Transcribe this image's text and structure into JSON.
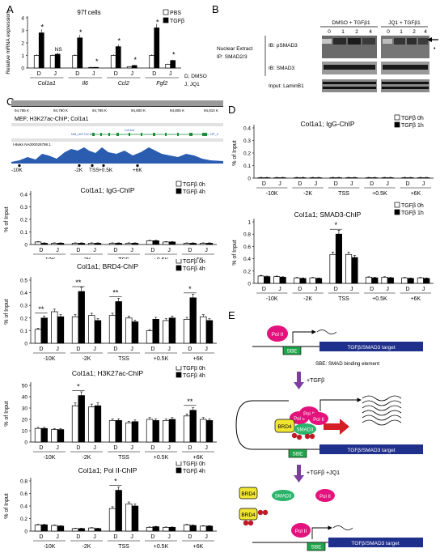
{
  "panels": {
    "A": "A",
    "B": "B",
    "C": "C",
    "D": "D",
    "E": "E"
  },
  "colors": {
    "open": "#ffffff",
    "filled": "#000000",
    "polII": "#e4127c",
    "sbe": "#1fa64a",
    "smad3": "#2bb36b",
    "brd4": "#f0e632",
    "target": "#1f2f8c",
    "arrow": "#7b3fa0",
    "redArrow": "#d41f26",
    "chipTrack": "#2a5db0",
    "acetyl": "#c01a28"
  },
  "panelA": {
    "title": "97f cells",
    "ylabel": "Relative mRNA expression",
    "legend": [
      "PBS",
      "TGFβ"
    ],
    "genes": [
      "Col1a1",
      "Il6",
      "Ccl2",
      "Fgf2"
    ],
    "xticks": [
      "D",
      "J"
    ],
    "note_d": "D, DMSO",
    "note_j": "J, JQ1",
    "ns": "NS",
    "star": "*"
  },
  "panelB": {
    "group1": "DMSO + TGFβ1",
    "group2": "JQ1 + TGFβ1",
    "lanes": [
      "0",
      "1",
      "2",
      "4"
    ],
    "left1": "Nuclear Extract",
    "left2": "IP: SMAD2/3",
    "ib1": "IB: pSMAD3",
    "ib2": "IB: SMAD3",
    "input": "Input: LaminB1",
    "dot": "•"
  },
  "panelC": {
    "ruler": [
      "94,785 K",
      "94,790 K",
      "94,795 K",
      "94,800 K",
      "94,805 K",
      "94,810 K"
    ],
    "track_title": "MEF; H3K27ac-ChIP; Col1a1",
    "gene_label": "Col1a1",
    "refseq": "NM_007742.3",
    "refseq2": "NP_0",
    "ylab_track": "t-8wks NA000026798.1",
    "sites": [
      "-10K",
      "-2K",
      "TSS",
      "+0.5K",
      "+6K"
    ]
  },
  "panelD": {
    "ylabel": "% of Input"
  },
  "panelE": {
    "polII": "Pol II",
    "sbe": "SBE",
    "target": "TGFβ/SMAD3 target",
    "sbe_def": "SBE: SMAD binding element",
    "step1": "+TGFβ",
    "step2": "+TGFβ +JQ1",
    "brd4": "BRD4",
    "smad3": "SMAD3"
  },
  "chart_data": [
    {
      "id": "A",
      "type": "bar",
      "title": "97f cells",
      "ylabel": "Relative mRNA expression",
      "ylim": [
        0,
        4
      ],
      "yticks": [
        0,
        1,
        2,
        3,
        4
      ],
      "categories": [
        "Col1a1 D",
        "Col1a1 J",
        "Il6 D",
        "Il6 J",
        "Ccl2 D",
        "Ccl2 J",
        "Fgf2 D",
        "Fgf2 J"
      ],
      "series": [
        {
          "name": "PBS",
          "values": [
            1.0,
            1.0,
            1.0,
            0.05,
            1.0,
            0.1,
            1.0,
            0.3
          ]
        },
        {
          "name": "TGFβ",
          "values": [
            2.8,
            1.1,
            2.4,
            0.05,
            1.7,
            0.2,
            3.2,
            0.6
          ]
        }
      ],
      "annotations": [
        {
          "category": "Col1a1 D",
          "text": "*"
        },
        {
          "category": "Col1a1 J",
          "text": "NS"
        },
        {
          "category": "Il6 D",
          "text": "*"
        },
        {
          "category": "Il6 J",
          "text": "*"
        },
        {
          "category": "Ccl2 D",
          "text": "*"
        },
        {
          "category": "Ccl2 J",
          "text": "*"
        },
        {
          "category": "Fgf2 D",
          "text": "*"
        },
        {
          "category": "Fgf2 J",
          "text": "*"
        }
      ]
    },
    {
      "id": "C1",
      "type": "bar",
      "title": "Col1a1; IgG-ChIP",
      "ylabel": "% of Input",
      "ylim": [
        0,
        0.4
      ],
      "yticks": [
        0,
        0.1,
        0.2,
        0.3,
        0.4
      ],
      "sites": [
        "-10K",
        "-2K",
        "TSS",
        "+0.5K",
        "+6K"
      ],
      "xticks": [
        "D",
        "J"
      ],
      "series": [
        {
          "name": "TGFβ 0h",
          "values": [
            0.02,
            0.01,
            0.01,
            0.01,
            0.01,
            0.01,
            0.03,
            0.02,
            0.01,
            0.01
          ]
        },
        {
          "name": "TGFβ 4h",
          "values": [
            0.01,
            0.01,
            0.01,
            0.01,
            0.01,
            0.01,
            0.03,
            0.02,
            0.01,
            0.01
          ]
        }
      ],
      "annotations": []
    },
    {
      "id": "C2",
      "type": "bar",
      "title": "Col1a1; BRD4-ChIP",
      "ylabel": "% of Input",
      "ylim": [
        0,
        0.5
      ],
      "yticks": [
        0,
        0.1,
        0.2,
        0.3,
        0.4,
        0.5
      ],
      "sites": [
        "-10K",
        "-2K",
        "TSS",
        "+0.5K",
        "+6K"
      ],
      "xticks": [
        "D",
        "J"
      ],
      "series": [
        {
          "name": "TGFβ 0h",
          "values": [
            0.11,
            0.25,
            0.21,
            0.22,
            0.22,
            0.2,
            0.1,
            0.18,
            0.19,
            0.21
          ]
        },
        {
          "name": "TGFβ 4h",
          "values": [
            0.2,
            0.21,
            0.41,
            0.18,
            0.33,
            0.17,
            0.19,
            0.2,
            0.36,
            0.18
          ]
        }
      ],
      "annotations": [
        {
          "site": "-10K",
          "text": "**"
        },
        {
          "site": "-2K",
          "text": "**"
        },
        {
          "site": "TSS",
          "text": "**"
        },
        {
          "site": "+6K",
          "text": "*"
        }
      ]
    },
    {
      "id": "C3",
      "type": "bar",
      "title": "Col1a1; H3K27ac-ChIP",
      "ylabel": "% of Input",
      "ylim": [
        0,
        50
      ],
      "yticks": [
        0,
        10,
        20,
        30,
        40,
        50
      ],
      "sites": [
        "-10K",
        "-2K",
        "TSS",
        "+0.5K",
        "+6K"
      ],
      "xticks": [
        "D",
        "J"
      ],
      "series": [
        {
          "name": "TGFβ 0h",
          "values": [
            12,
            11,
            32,
            31,
            19,
            17,
            20,
            19,
            23,
            20
          ]
        },
        {
          "name": "TGFβ 4h",
          "values": [
            12,
            11,
            41,
            32,
            19,
            18,
            19,
            20,
            28,
            19
          ]
        }
      ],
      "annotations": [
        {
          "site": "-2K",
          "text": "*"
        },
        {
          "site": "+6K",
          "text": "**"
        }
      ]
    },
    {
      "id": "C4",
      "type": "bar",
      "title": "Col1a1; Pol II-ChIP",
      "ylabel": "% of Input",
      "ylim": [
        0,
        0.8
      ],
      "yticks": [
        0,
        0.2,
        0.4,
        0.6,
        0.8
      ],
      "sites": [
        "-10K",
        "-2K",
        "TSS",
        "+0.5K",
        "+6K"
      ],
      "xticks": [
        "D",
        "J"
      ],
      "series": [
        {
          "name": "TGFβ 0h",
          "values": [
            0.1,
            0.09,
            0.04,
            0.05,
            0.36,
            0.43,
            0.06,
            0.06,
            0.1,
            0.08
          ]
        },
        {
          "name": "TGFβ 4h",
          "values": [
            0.1,
            0.08,
            0.04,
            0.04,
            0.65,
            0.4,
            0.07,
            0.06,
            0.09,
            0.08
          ]
        }
      ],
      "annotations": [
        {
          "site": "TSS",
          "text": "*"
        }
      ]
    },
    {
      "id": "D1",
      "type": "bar",
      "title": "Col1a1; IgG-ChIP",
      "ylabel": "% of Input",
      "ylim": [
        0,
        0.4
      ],
      "yticks": [
        0,
        0.1,
        0.2,
        0.3,
        0.4
      ],
      "sites": [
        "-10K",
        "-2K",
        "TSS",
        "+0.5K",
        "+6K"
      ],
      "xticks": [
        "D",
        "J"
      ],
      "series": [
        {
          "name": "TGFβ 0h",
          "values": [
            0.003,
            0.003,
            0.003,
            0.003,
            0.003,
            0.003,
            0.003,
            0.003,
            0.003,
            0.003
          ]
        },
        {
          "name": "TGFβ 1h",
          "values": [
            0.003,
            0.003,
            0.003,
            0.003,
            0.003,
            0.003,
            0.003,
            0.003,
            0.003,
            0.003
          ]
        }
      ],
      "annotations": []
    },
    {
      "id": "D2",
      "type": "bar",
      "title": "Col1a1; SMAD3-ChIP",
      "ylabel": "% of Input",
      "ylim": [
        0,
        1.0
      ],
      "yticks": [
        0,
        0.2,
        0.4,
        0.6,
        0.8,
        1.0
      ],
      "sites": [
        "-10K",
        "-2K",
        "TSS",
        "+0.5K",
        "+6K"
      ],
      "xticks": [
        "D",
        "J"
      ],
      "series": [
        {
          "name": "TGFβ 0h",
          "values": [
            0.12,
            0.11,
            0.09,
            0.09,
            0.47,
            0.47,
            0.1,
            0.1,
            0.09,
            0.09
          ]
        },
        {
          "name": "TGFβ 1h",
          "values": [
            0.11,
            0.1,
            0.08,
            0.08,
            0.8,
            0.42,
            0.09,
            0.09,
            0.08,
            0.08
          ]
        }
      ],
      "annotations": [
        {
          "site": "TSS",
          "text": "*"
        }
      ]
    }
  ]
}
